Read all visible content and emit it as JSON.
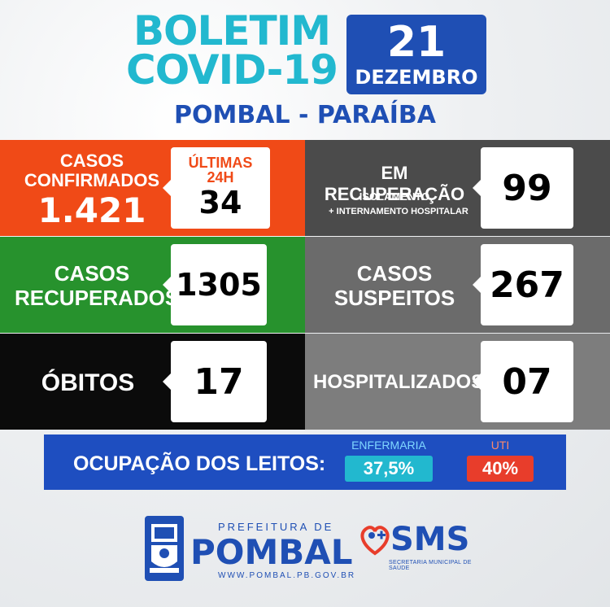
{
  "header": {
    "title_line1": "BOLETIM",
    "title_line2": "COVID-19",
    "day": "21",
    "month": "DEZEMBRO",
    "location": "POMBAL - PARAÍBA"
  },
  "stats": {
    "confirmados": {
      "label_line1": "CASOS",
      "label_line2": "CONFIRMADOS",
      "value": "1.421",
      "last24_label_line1": "ÚLTIMAS",
      "last24_label_line2": "24H",
      "last24_value": "34"
    },
    "em_recuperacao": {
      "label": "EM RECUPERAÇÃO",
      "sub1": "ISOLAMENTO",
      "sub2": "+ INTERNAMENTO HOSPITALAR",
      "value": "99"
    },
    "recuperados": {
      "label_line1": "CASOS",
      "label_line2": "RECUPERADOS",
      "value": "1305"
    },
    "suspeitos": {
      "label_line1": "CASOS",
      "label_line2": "SUSPEITOS",
      "value": "267"
    },
    "obitos": {
      "label": "ÓBITOS",
      "value": "17"
    },
    "hospitalizados": {
      "label": "HOSPITALIZADOS",
      "value": "07"
    }
  },
  "leitos": {
    "label": "OCUPAÇÃO DOS LEITOS:",
    "enfermaria_label": "ENFERMARIA",
    "enfermaria_value": "37,5%",
    "uti_label": "UTI",
    "uti_value": "40%"
  },
  "footer": {
    "prefeitura_small": "PREFEITURA DE",
    "prefeitura_big": "POMBAL",
    "website": "WWW.POMBAL.PB.GOV.BR",
    "sms_logo": "SMS",
    "sms_sub": "SECRETARIA MUNICIPAL DE SAÚDE"
  },
  "colors": {
    "orange": "#f04a17",
    "green": "#27922d",
    "black": "#0b0b0b",
    "dark_gray": "#4b4b4b",
    "mid_gray": "#6b6b6b",
    "gray": "#7d7d7d",
    "cyan": "#22b8cf",
    "blue": "#1f4fb4",
    "red": "#e83d2b"
  }
}
